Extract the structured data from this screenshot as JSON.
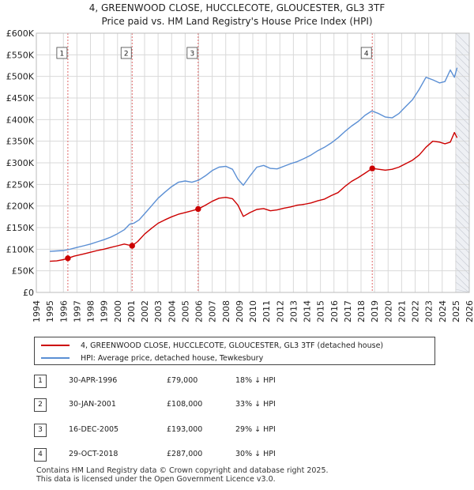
{
  "title": {
    "line1": "4, GREENWOOD CLOSE, HUCCLECOTE, GLOUCESTER, GL3 3TF",
    "line2": "Price paid vs. HM Land Registry's House Price Index (HPI)"
  },
  "chart_data": {
    "type": "line",
    "title": "4, GREENWOOD CLOSE, HUCCLECOTE, GLOUCESTER, GL3 3TF — Price paid vs. HM Land Registry's House Price Index (HPI)",
    "xlabel": "",
    "ylabel": "",
    "xlim": [
      1994,
      2026
    ],
    "ylim": [
      0,
      600000
    ],
    "x_ticks": [
      1994,
      1995,
      1996,
      1997,
      1998,
      1999,
      2000,
      2001,
      2002,
      2003,
      2004,
      2005,
      2006,
      2007,
      2008,
      2009,
      2010,
      2011,
      2012,
      2013,
      2014,
      2015,
      2016,
      2017,
      2018,
      2019,
      2020,
      2021,
      2022,
      2023,
      2024,
      2025,
      2026
    ],
    "y_ticks": [
      {
        "value": 0,
        "label": "£0"
      },
      {
        "value": 50000,
        "label": "£50K"
      },
      {
        "value": 100000,
        "label": "£100K"
      },
      {
        "value": 150000,
        "label": "£150K"
      },
      {
        "value": 200000,
        "label": "£200K"
      },
      {
        "value": 250000,
        "label": "£250K"
      },
      {
        "value": 300000,
        "label": "£300K"
      },
      {
        "value": 350000,
        "label": "£350K"
      },
      {
        "value": 400000,
        "label": "£400K"
      },
      {
        "value": 450000,
        "label": "£450K"
      },
      {
        "value": 500000,
        "label": "£500K"
      },
      {
        "value": 550000,
        "label": "£550K"
      },
      {
        "value": 600000,
        "label": "£600K"
      }
    ],
    "grid": true,
    "series": [
      {
        "name": "4, GREENWOOD CLOSE, HUCCLECOTE, GLOUCESTER, GL3 3TF (detached house)",
        "color": "#cc0000",
        "x": [
          1995.0,
          1995.5,
          1996.0,
          1996.33,
          1996.8,
          1997.5,
          1998.0,
          1998.5,
          1999.0,
          1999.5,
          2000.0,
          2000.5,
          2001.08,
          2001.5,
          2002.0,
          2002.5,
          2003.0,
          2003.5,
          2004.0,
          2004.5,
          2005.0,
          2005.5,
          2005.96,
          2006.5,
          2007.0,
          2007.5,
          2008.0,
          2008.5,
          2008.9,
          2009.3,
          2009.8,
          2010.3,
          2010.8,
          2011.3,
          2011.8,
          2012.3,
          2012.8,
          2013.3,
          2013.8,
          2014.3,
          2014.8,
          2015.3,
          2015.8,
          2016.3,
          2016.8,
          2017.3,
          2017.8,
          2018.3,
          2018.83,
          2019.3,
          2019.8,
          2020.3,
          2020.8,
          2021.3,
          2021.8,
          2022.3,
          2022.8,
          2023.3,
          2023.8,
          2024.2,
          2024.6,
          2024.9,
          2025.1
        ],
        "values": [
          72000,
          73000,
          76000,
          79000,
          84000,
          89000,
          93000,
          97000,
          100000,
          104000,
          108000,
          112000,
          108000,
          118000,
          135000,
          148000,
          160000,
          168000,
          175000,
          181000,
          185000,
          189000,
          193000,
          202000,
          211000,
          218000,
          220000,
          217000,
          202000,
          176000,
          185000,
          192000,
          194000,
          189000,
          191000,
          195000,
          198000,
          202000,
          204000,
          207000,
          212000,
          216000,
          224000,
          231000,
          245000,
          257000,
          266000,
          276000,
          287000,
          285000,
          283000,
          285000,
          290000,
          298000,
          306000,
          318000,
          336000,
          350000,
          348000,
          344000,
          348000,
          370000,
          358000
        ]
      },
      {
        "name": "HPI: Average price, detached house, Tewkesbury",
        "color": "#5b8fd4",
        "x": [
          1995.0,
          1995.5,
          1996.0,
          1996.5,
          1997.0,
          1997.5,
          1998.0,
          1998.5,
          1999.0,
          1999.5,
          2000.0,
          2000.5,
          2000.9,
          2001.2,
          2001.6,
          2002.0,
          2002.5,
          2003.0,
          2003.5,
          2004.0,
          2004.5,
          2005.0,
          2005.5,
          2006.0,
          2006.5,
          2007.0,
          2007.5,
          2008.0,
          2008.5,
          2008.9,
          2009.3,
          2009.8,
          2010.3,
          2010.8,
          2011.3,
          2011.8,
          2012.3,
          2012.8,
          2013.3,
          2013.8,
          2014.3,
          2014.8,
          2015.3,
          2015.8,
          2016.3,
          2016.8,
          2017.3,
          2017.8,
          2018.3,
          2018.8,
          2019.3,
          2019.8,
          2020.3,
          2020.8,
          2021.3,
          2021.8,
          2022.3,
          2022.8,
          2023.3,
          2023.8,
          2024.2,
          2024.6,
          2024.9,
          2025.1
        ],
        "values": [
          95000,
          96000,
          97000,
          100000,
          104000,
          108000,
          112000,
          117000,
          122000,
          128000,
          136000,
          145000,
          158000,
          160000,
          168000,
          182000,
          200000,
          218000,
          232000,
          245000,
          255000,
          258000,
          255000,
          260000,
          270000,
          282000,
          290000,
          292000,
          285000,
          262000,
          248000,
          270000,
          290000,
          294000,
          287000,
          286000,
          292000,
          298000,
          303000,
          310000,
          318000,
          328000,
          336000,
          346000,
          358000,
          372000,
          385000,
          396000,
          410000,
          420000,
          414000,
          406000,
          404000,
          414000,
          430000,
          446000,
          470000,
          498000,
          492000,
          485000,
          488000,
          515000,
          498000,
          520000
        ]
      }
    ],
    "sales": [
      {
        "id": "1",
        "x": 1996.33,
        "value": 79000
      },
      {
        "id": "2",
        "x": 2001.08,
        "value": 108000
      },
      {
        "id": "3",
        "x": 2005.96,
        "value": 193000
      },
      {
        "id": "4",
        "x": 2018.83,
        "value": 287000
      }
    ],
    "forecast_start": 2025.0
  },
  "legend": {
    "property_label": "4, GREENWOOD CLOSE, HUCCLECOTE, GLOUCESTER, GL3 3TF (detached house)",
    "hpi_label": "HPI: Average price, detached house, Tewkesbury",
    "property_color": "#cc0000",
    "hpi_color": "#5b8fd4"
  },
  "sales_table": [
    {
      "num": "1",
      "date": "30-APR-1996",
      "price": "£79,000",
      "hpi": "18% ↓ HPI"
    },
    {
      "num": "2",
      "date": "30-JAN-2001",
      "price": "£108,000",
      "hpi": "33% ↓ HPI"
    },
    {
      "num": "3",
      "date": "16-DEC-2005",
      "price": "£193,000",
      "hpi": "29% ↓ HPI"
    },
    {
      "num": "4",
      "date": "29-OCT-2018",
      "price": "£287,000",
      "hpi": "30% ↓ HPI"
    }
  ],
  "footer": {
    "line1": "Contains HM Land Registry data © Crown copyright and database right 2025.",
    "line2": "This data is licensed under the Open Government Licence v3.0."
  }
}
